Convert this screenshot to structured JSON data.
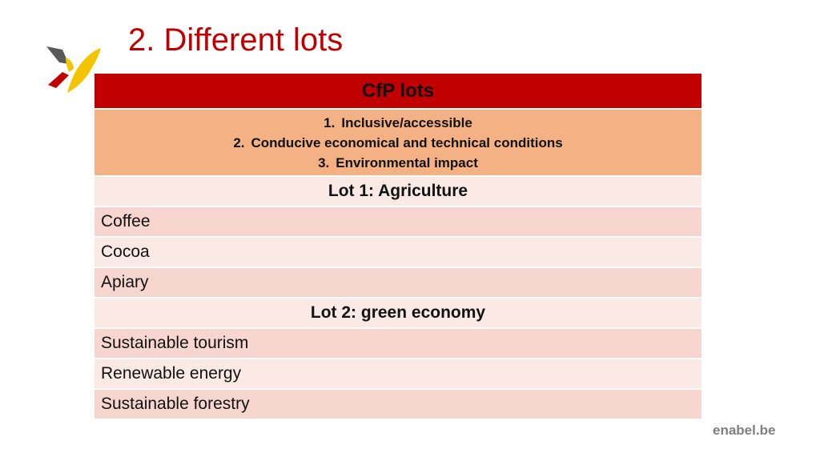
{
  "slide": {
    "title": "2. Different lots"
  },
  "table": {
    "header": "CfP lots",
    "criteria": [
      {
        "num": "1.",
        "text": "Inclusive/accessible"
      },
      {
        "num": "2.",
        "text": "Conducive economical and technical conditions"
      },
      {
        "num": "3.",
        "text": "Environmental impact"
      }
    ],
    "lot1": {
      "title": "Lot 1: Agriculture",
      "items": [
        "Coffee",
        "Cocoa",
        "Apiary"
      ]
    },
    "lot2": {
      "title": "Lot 2: green economy",
      "items": [
        "Sustainable tourism",
        "Renewable energy",
        "Sustainable forestry"
      ]
    }
  },
  "footer": {
    "brand": "enabel.be"
  },
  "colors": {
    "accent_red": "#c00000",
    "criteria_orange": "#f4b183",
    "row_dark": "#f8d6d0",
    "row_light": "#fbe9e5",
    "logo_yellow": "#f5c400",
    "logo_gray": "#595959"
  },
  "icons": {
    "logo": "enabel-bird-logo"
  }
}
